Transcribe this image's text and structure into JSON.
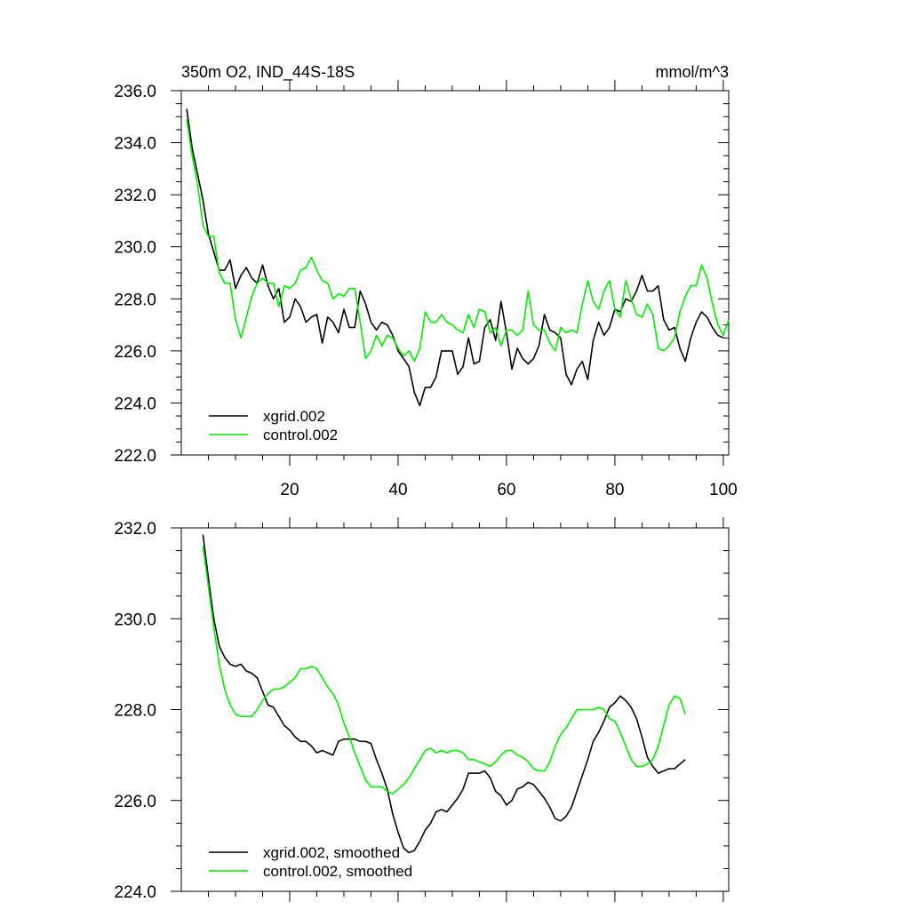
{
  "chart_data": [
    {
      "type": "line",
      "title_left": "350m O2, IND_44S-18S",
      "title_right": "mmol/m^3",
      "xlabel": "",
      "ylabel": "",
      "xlim": [
        0,
        101
      ],
      "ylim": [
        222,
        236
      ],
      "xticks": [
        20,
        40,
        60,
        80,
        100
      ],
      "yticks": [
        222,
        224,
        226,
        228,
        230,
        232,
        234,
        236
      ],
      "ytick_labels": [
        "222.0",
        "224.0",
        "226.0",
        "228.0",
        "230.0",
        "232.0",
        "234.0",
        "236.0"
      ],
      "x_minor_step": 5,
      "y_minor_step": 0.5,
      "show_x_labels": true,
      "grid": false,
      "legend_position": "bottom-left",
      "series": [
        {
          "name": "xgrid.002",
          "color": "#000000",
          "x_start": 1,
          "values": [
            235.3,
            233.8,
            232.8,
            231.8,
            230.5,
            229.8,
            229.1,
            229.1,
            229.5,
            228.4,
            228.9,
            229.2,
            228.8,
            228.6,
            229.3,
            228.5,
            228.0,
            228.4,
            227.1,
            227.3,
            228.0,
            227.7,
            227.1,
            227.3,
            227.4,
            226.3,
            227.3,
            227.1,
            226.7,
            227.6,
            226.9,
            226.9,
            228.3,
            227.8,
            227.1,
            226.8,
            227.1,
            227.0,
            226.6,
            226.0,
            225.7,
            225.4,
            224.4,
            223.9,
            224.6,
            224.6,
            225.0,
            226.0,
            226.0,
            226.0,
            225.1,
            225.4,
            226.5,
            225.5,
            225.6,
            226.9,
            227.2,
            226.4,
            227.9,
            226.7,
            225.3,
            226.1,
            225.7,
            225.5,
            225.7,
            226.2,
            227.4,
            226.8,
            226.7,
            226.5,
            225.1,
            224.7,
            225.3,
            225.6,
            224.9,
            226.4,
            227.1,
            226.6,
            226.9,
            227.6,
            227.5,
            228.0,
            227.9,
            228.3,
            228.9,
            228.3,
            228.3,
            228.5,
            227.2,
            226.8,
            226.9,
            226.1,
            225.6,
            226.5,
            227.1,
            227.5,
            227.3,
            226.9,
            226.6,
            226.5
          ]
        },
        {
          "name": "control.002",
          "color": "#00ee00",
          "x_start": 1,
          "values": [
            234.9,
            233.5,
            232.4,
            230.8,
            230.4,
            230.4,
            229.0,
            228.6,
            228.6,
            227.2,
            226.5,
            227.3,
            228.1,
            228.6,
            228.8,
            228.6,
            228.6,
            227.7,
            228.5,
            228.4,
            228.6,
            229.1,
            229.2,
            229.6,
            229.1,
            228.7,
            228.6,
            228.0,
            228.2,
            228.1,
            228.4,
            228.4,
            227.1,
            225.7,
            226.0,
            226.6,
            226.2,
            226.6,
            226.5,
            226.1,
            225.8,
            226.0,
            225.6,
            226.1,
            227.5,
            227.1,
            227.1,
            227.4,
            227.1,
            227.0,
            226.8,
            226.7,
            227.4,
            226.9,
            227.6,
            227.5,
            226.7,
            226.9,
            226.2,
            226.8,
            226.8,
            226.6,
            226.8,
            228.3,
            227.0,
            226.8,
            226.8,
            226.3,
            226.0,
            226.9,
            226.7,
            226.8,
            226.7,
            227.8,
            228.7,
            227.9,
            227.6,
            228.3,
            228.7,
            227.6,
            227.3,
            228.7,
            228.0,
            227.4,
            227.3,
            227.8,
            227.4,
            226.1,
            226.0,
            226.2,
            226.5,
            227.5,
            228.1,
            228.5,
            228.5,
            229.3,
            228.8,
            227.8,
            227.0,
            226.6,
            227.2
          ]
        }
      ]
    },
    {
      "type": "line",
      "title_left": "",
      "title_right": "",
      "xlabel": "",
      "ylabel": "",
      "xlim": [
        0,
        101
      ],
      "ylim": [
        224,
        232
      ],
      "xticks": [
        20,
        40,
        60,
        80,
        100
      ],
      "yticks": [
        224,
        226,
        228,
        230,
        232
      ],
      "ytick_labels": [
        "224.0",
        "226.0",
        "228.0",
        "230.0",
        "232.0"
      ],
      "x_minor_step": 5,
      "y_minor_step": 0.5,
      "show_x_labels": false,
      "grid": false,
      "legend_position": "bottom-left",
      "series": [
        {
          "name": "xgrid.002, smoothed",
          "color": "#000000",
          "x_start": 4,
          "values": [
            231.85,
            230.9,
            230.0,
            229.4,
            229.15,
            229.0,
            228.95,
            229.0,
            228.85,
            228.8,
            228.7,
            228.4,
            228.1,
            228.05,
            227.85,
            227.65,
            227.55,
            227.4,
            227.3,
            227.3,
            227.2,
            227.05,
            227.1,
            227.05,
            227.0,
            227.3,
            227.35,
            227.35,
            227.35,
            227.3,
            227.3,
            227.25,
            226.9,
            226.6,
            226.25,
            225.7,
            225.3,
            224.95,
            224.85,
            224.9,
            225.1,
            225.35,
            225.5,
            225.75,
            225.8,
            225.75,
            225.9,
            226.05,
            226.25,
            226.6,
            226.6,
            226.6,
            226.65,
            226.5,
            226.2,
            226.1,
            225.9,
            226.0,
            226.25,
            226.3,
            226.4,
            226.35,
            226.2,
            226.05,
            225.85,
            225.6,
            225.55,
            225.65,
            225.85,
            226.2,
            226.55,
            226.9,
            227.3,
            227.5,
            227.75,
            228.05,
            228.15,
            228.3,
            228.2,
            228.05,
            227.8,
            227.4,
            226.95,
            226.75,
            226.6,
            226.65,
            226.7,
            226.7,
            226.8,
            226.9
          ]
        },
        {
          "name": "control.002, smoothed",
          "color": "#00ee00",
          "x_start": 4,
          "values": [
            231.6,
            230.7,
            229.8,
            229.0,
            228.45,
            228.1,
            227.9,
            227.85,
            227.85,
            227.85,
            228.0,
            228.2,
            228.35,
            228.45,
            228.45,
            228.5,
            228.6,
            228.7,
            228.9,
            228.9,
            228.95,
            228.9,
            228.7,
            228.5,
            228.35,
            228.1,
            227.7,
            227.4,
            227.05,
            226.75,
            226.45,
            226.3,
            226.3,
            226.3,
            226.2,
            226.15,
            226.25,
            226.35,
            226.5,
            226.7,
            226.9,
            227.1,
            227.15,
            227.05,
            227.1,
            227.05,
            227.1,
            227.1,
            227.05,
            226.9,
            226.9,
            226.85,
            226.8,
            226.75,
            226.85,
            227.0,
            227.1,
            227.1,
            227.0,
            226.95,
            226.85,
            226.7,
            226.65,
            226.65,
            226.85,
            227.2,
            227.45,
            227.6,
            227.8,
            228.0,
            228.0,
            228.0,
            228.0,
            228.05,
            228.0,
            227.8,
            227.75,
            227.5,
            227.2,
            226.9,
            226.75,
            226.75,
            226.8,
            226.9,
            227.2,
            227.65,
            228.1,
            228.3,
            228.25,
            227.9
          ]
        }
      ]
    }
  ]
}
